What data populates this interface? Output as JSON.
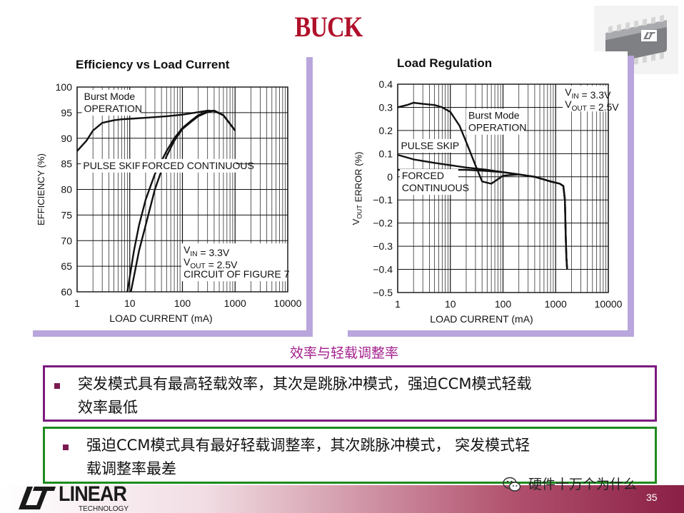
{
  "slide": {
    "title": "BUCK",
    "caption": "效率与轻载调整率",
    "bullets": [
      "突发模式具有最高轻载效率，其次是跳脉冲模式，强迫CCM模式轻载效率最低",
      "强迫CCM模式具有最好轻载调整率，其次跳脉冲模式， 突发模式轻载调整率最差"
    ],
    "bullet_lines": [
      [
        "突发模式具有最高轻载效率，其次是跳脉冲模式，强迫CCM模式轻载",
        "效率最低"
      ],
      [
        "强迫CCM模式具有最好轻载调整率，其次跳脉冲模式， 突发模式轻",
        "载调整率最差"
      ]
    ],
    "logo_text": "LINEAR",
    "logo_subtext": "TECHNOLOGY",
    "watermark": "硬件十万个为什么",
    "page_number": "35",
    "colors": {
      "title": "#b0102a",
      "caption": "#a31f8d",
      "box1_border": "#7b1a7f",
      "box2_border": "#1e8a1e",
      "bullet": "#7b1a4f",
      "panel_shadow": "#b9a6dc"
    }
  },
  "chart_data": [
    {
      "type": "line",
      "title": "Efficiency vs Load Current",
      "xlabel": "LOAD CURRENT (mA)",
      "ylabel": "EFFICIENCY (%)",
      "xscale": "log",
      "xlim": [
        1,
        10000
      ],
      "ylim": [
        60,
        100
      ],
      "x_ticks": [
        "1",
        "10",
        "100",
        "1000",
        "10000"
      ],
      "y_ticks": [
        "100",
        "95",
        "90",
        "85",
        "80",
        "75",
        "70",
        "65",
        "60"
      ],
      "grid": true,
      "annotations": [
        {
          "lines": [
            "Burst Mode",
            "OPERATION"
          ],
          "x": 1.35,
          "y": 97.5
        },
        {
          "lines": [
            "PULSE SKIP"
          ],
          "x": 1.3,
          "y": 84
        },
        {
          "lines": [
            "FORCED CONTINUOUS"
          ],
          "x": 17,
          "y": 84
        },
        {
          "lines": [
            "V_IN = 3.3V",
            "V_OUT = 2.5V",
            "CIRCUIT OF FIGURE 7"
          ],
          "x": 105,
          "y": 67.5
        }
      ],
      "series": [
        {
          "x": [
            1,
            1.5,
            2,
            3,
            5,
            7,
            10,
            20,
            50,
            100,
            200,
            300,
            400,
            600,
            1000
          ],
          "y": [
            87.5,
            89.5,
            91.5,
            93,
            93.5,
            93.7,
            93.8,
            94,
            94.3,
            94.6,
            95.1,
            95.4,
            95.3,
            94.5,
            91.5
          ]
        },
        {
          "x": [
            9,
            10,
            12,
            15,
            20,
            30,
            50,
            70,
            100,
            150,
            200,
            300,
            400,
            600,
            1000
          ],
          "y": [
            60,
            63,
            68,
            73,
            78,
            83,
            87.5,
            90,
            92,
            93.5,
            94.5,
            95.2,
            95.4,
            94.5,
            91.5
          ]
        },
        {
          "x": [
            10.5,
            12,
            15,
            20,
            30,
            50,
            70,
            100,
            150,
            200,
            300,
            400,
            600,
            1000
          ],
          "y": [
            60,
            63,
            68,
            73,
            80,
            86.5,
            89.5,
            91.8,
            93.3,
            94.3,
            95.1,
            95.4,
            94.5,
            91.5
          ]
        }
      ]
    },
    {
      "type": "line",
      "title": "Load Regulation",
      "xlabel": "LOAD CURRENT (mA)",
      "ylabel": "V_OUT ERROR (%)",
      "xscale": "log",
      "xlim": [
        1,
        10000
      ],
      "ylim": [
        -0.5,
        0.4
      ],
      "x_ticks": [
        "1",
        "10",
        "100",
        "1000",
        "10000"
      ],
      "y_ticks": [
        "0.4",
        "0.3",
        "0.2",
        "0.1",
        "0",
        "−0.1",
        "−0.2",
        "−0.3",
        "−0.4",
        "−0.5"
      ],
      "grid": true,
      "annotations": [
        {
          "lines": [
            "V_IN = 3.3V",
            "V_OUT = 2.5V"
          ],
          "x": 1500,
          "y": 0.35
        },
        {
          "lines": [
            "Burst Mode",
            "OPERATION"
          ],
          "x": 22,
          "y": 0.25
        },
        {
          "lines": [
            "PULSE SKIP"
          ],
          "x": 1.15,
          "y": 0.12
        },
        {
          "lines": [
            "FORCED",
            "CONTINUOUS"
          ],
          "x": 1.2,
          "y": -0.01
        }
      ],
      "series": [
        {
          "x": [
            1,
            1.5,
            2,
            3,
            5,
            7,
            10,
            15,
            20,
            30,
            40,
            60,
            100,
            200,
            400,
            800,
            1200,
            1400,
            1500,
            1550,
            1600,
            1650
          ],
          "y": [
            0.3,
            0.31,
            0.32,
            0.315,
            0.31,
            0.3,
            0.28,
            0.22,
            0.15,
            0.05,
            -0.02,
            -0.03,
            0.005,
            0.01,
            0.0,
            -0.02,
            -0.03,
            -0.04,
            -0.1,
            -0.25,
            -0.35,
            -0.4
          ]
        },
        {
          "x": [
            1,
            2,
            5,
            10,
            20,
            50,
            100,
            200,
            400,
            800,
            1200,
            1400,
            1500,
            1550,
            1600,
            1650
          ],
          "y": [
            0.095,
            0.075,
            0.06,
            0.05,
            0.04,
            0.03,
            0.02,
            0.01,
            0.0,
            -0.02,
            -0.03,
            -0.04,
            -0.1,
            -0.25,
            -0.35,
            -0.4
          ]
        },
        {
          "x": [
            1,
            2,
            5,
            10,
            20,
            50,
            100,
            200,
            400,
            800,
            1200,
            1400,
            1500,
            1550,
            1600,
            1650
          ],
          "y": [
            0.03,
            0.03,
            0.03,
            0.03,
            0.03,
            0.025,
            0.02,
            0.01,
            0.0,
            -0.02,
            -0.03,
            -0.04,
            -0.1,
            -0.25,
            -0.35,
            -0.4
          ]
        }
      ]
    }
  ]
}
